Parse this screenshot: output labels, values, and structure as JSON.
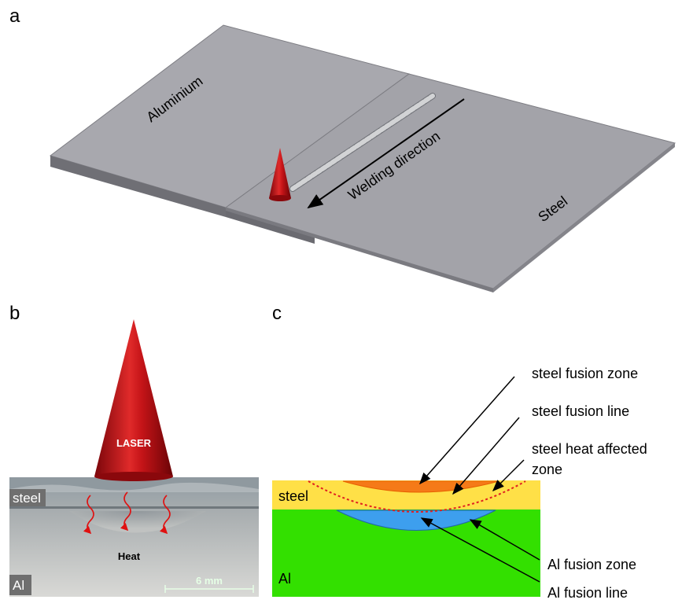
{
  "panels": {
    "a": {
      "letter": "a",
      "aluminium_label": "Aluminium",
      "steel_label": "Steel",
      "direction_label": "Welding direction"
    },
    "b": {
      "letter": "b",
      "laser_label": "LASER",
      "steel_label": "steel",
      "al_label": "Al",
      "heat_label": "Heat",
      "scale_label": "6 mm"
    },
    "c": {
      "letter": "c",
      "steel_label": "steel",
      "al_label": "Al",
      "callouts": {
        "steel_fusion_zone": "steel fusion zone",
        "steel_fusion_line": "steel fusion line",
        "steel_haz_line1": "steel heat affected",
        "steel_haz_line2": "zone",
        "al_fusion_zone": "Al fusion zone",
        "al_fusion_line": "Al fusion line"
      }
    }
  },
  "colors": {
    "aluminium_plate": "#a8a8ae",
    "steel_plate": "#a3a3a9",
    "laser_red": "#b00d12",
    "steel_layer": "#ffe047",
    "al_layer": "#33e000",
    "steel_fusion_zone": "#f57a18",
    "al_fusion_zone": "#3d9fee",
    "haz_boundary": "#e02020"
  }
}
